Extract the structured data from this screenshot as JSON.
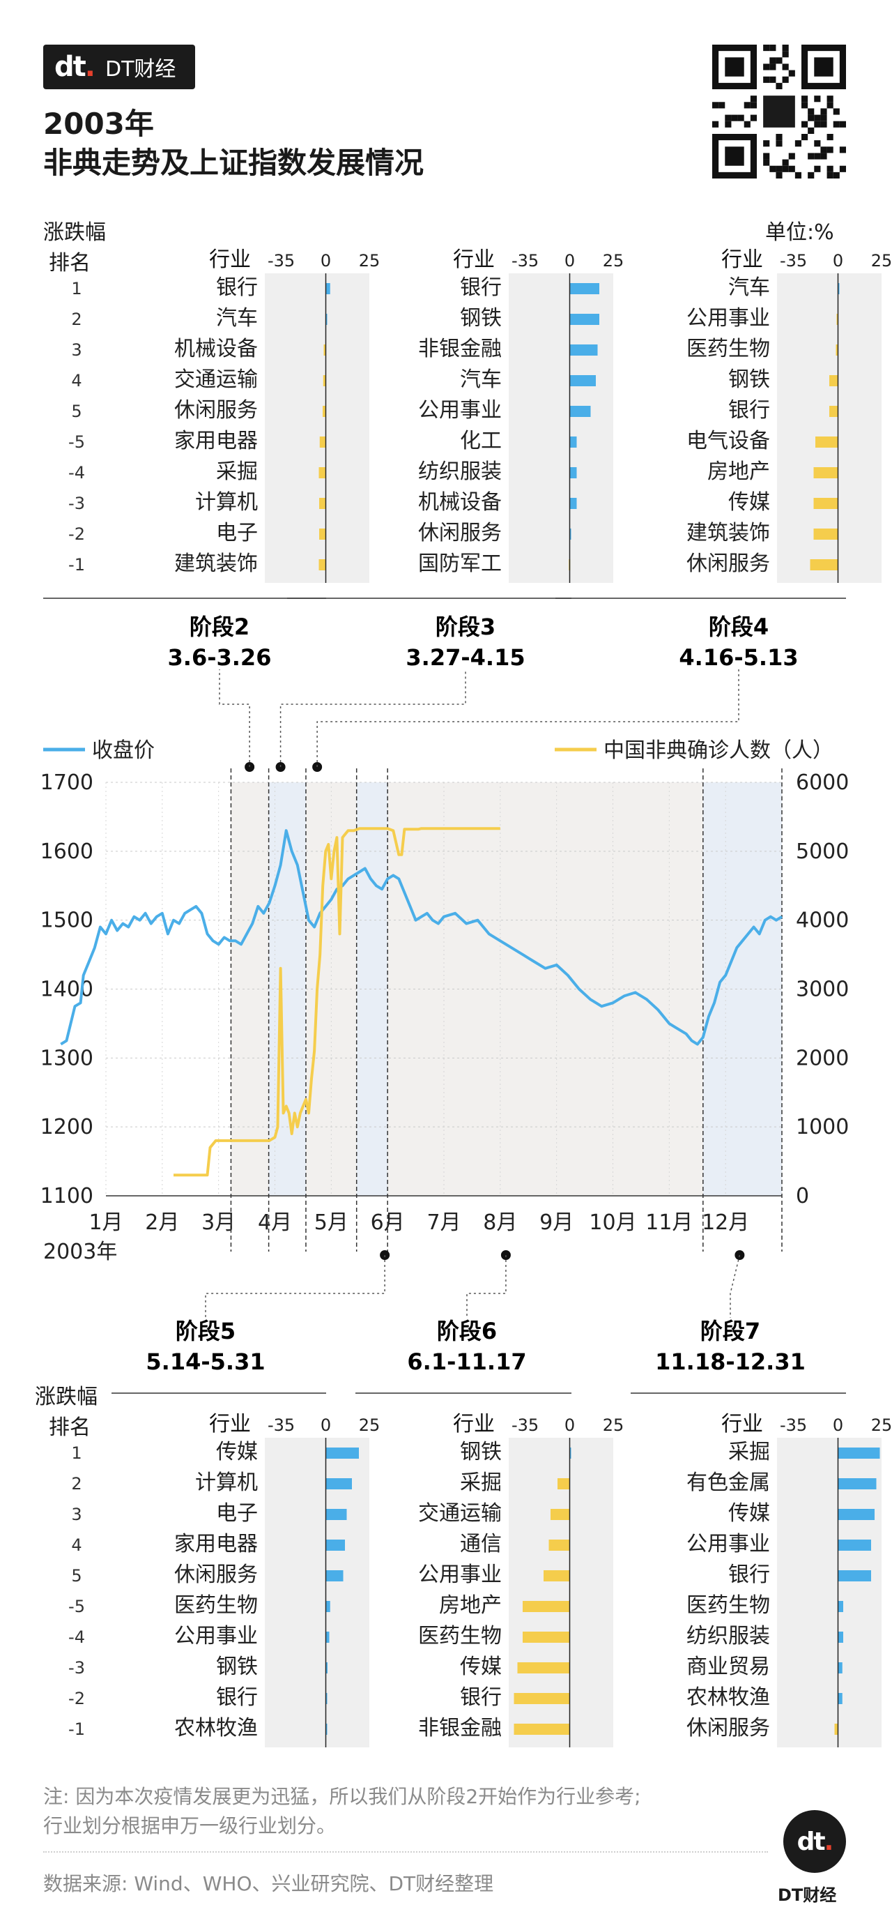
{
  "brand": {
    "logo_text": "DT财经"
  },
  "title_lines": [
    "2003年",
    "非典走势及上证指数发展情况"
  ],
  "labels": {
    "change_label": "涨跌幅",
    "rank_label": "排名",
    "industry_label": "行业",
    "unit_label": "单位:%"
  },
  "ranks": [
    "1",
    "2",
    "3",
    "4",
    "5",
    "-5",
    "-4",
    "-3",
    "-2",
    "-1"
  ],
  "colors": {
    "blue": "#4aaee8",
    "yellow": "#f5cd4c",
    "stage_gray": "#f2f0ee",
    "stage_blue": "#e8eef6",
    "panel_bg": "#efefef"
  },
  "stages": [
    {
      "name": "阶段2",
      "range": "3.6-3.26",
      "industries": [
        "银行",
        "汽车",
        "机械设备",
        "交通运输",
        "休闲服务",
        "家用电器",
        "采掘",
        "计算机",
        "电子",
        "建筑装饰"
      ],
      "values": [
        2.5,
        0.5,
        -1.2,
        -1.5,
        -1.8,
        -3.5,
        -4.0,
        -3.8,
        -3.8,
        -4.0
      ]
    },
    {
      "name": "阶段3",
      "range": "3.27-4.15",
      "industries": [
        "银行",
        "钢铁",
        "非银金融",
        "汽车",
        "公用事业",
        "化工",
        "纺织服装",
        "机械设备",
        "休闲服务",
        "国防军工"
      ],
      "values": [
        17,
        17,
        16,
        15,
        12,
        4,
        4,
        4,
        0.5,
        -0.5
      ]
    },
    {
      "name": "阶段4",
      "range": "4.16-5.13",
      "industries": [
        "汽车",
        "公用事业",
        "医药生物",
        "钢铁",
        "银行",
        "电气设备",
        "房地产",
        "传媒",
        "建筑装饰",
        "休闲服务"
      ],
      "values": [
        0.5,
        -0.8,
        -1.2,
        -5,
        -5,
        -13,
        -14,
        -14,
        -14,
        -16
      ]
    },
    {
      "name": "阶段5",
      "range": "5.14-5.31",
      "industries": [
        "传媒",
        "计算机",
        "电子",
        "家用电器",
        "休闲服务",
        "医药生物",
        "公用事业",
        "钢铁",
        "银行",
        "农林牧渔"
      ],
      "values": [
        19,
        15,
        12,
        11,
        10,
        2.5,
        2,
        1,
        0.5,
        0.3
      ]
    },
    {
      "name": "阶段6",
      "range": "6.1-11.17",
      "industries": [
        "钢铁",
        "采掘",
        "交通运输",
        "通信",
        "公用事业",
        "房地产",
        "医药生物",
        "传媒",
        "银行",
        "非银金融"
      ],
      "values": [
        0,
        -7,
        -11,
        -12,
        -15,
        -27,
        -27,
        -30,
        -32,
        -32
      ]
    },
    {
      "name": "阶段7",
      "range": "11.18-12.31",
      "industries": [
        "采掘",
        "有色金属",
        "传媒",
        "公用事业",
        "银行",
        "医药生物",
        "纺织服装",
        "商业贸易",
        "农林牧渔",
        "休闲服务"
      ],
      "values": [
        24,
        22,
        21,
        19,
        19,
        3,
        3,
        2.5,
        2.5,
        -2
      ]
    }
  ],
  "chart_data": {
    "type": "line",
    "title": "2003年 非典走势及上证指数发展情况",
    "xlabel": "2003年",
    "x_ticks": [
      "1月",
      "2月",
      "3月",
      "4月",
      "5月",
      "6月",
      "7月",
      "8月",
      "9月",
      "10月",
      "11月",
      "12月"
    ],
    "y_left": {
      "label": "收盘价",
      "ticks": [
        1100,
        1200,
        1300,
        1400,
        1500,
        1600,
        1700
      ],
      "range": [
        1100,
        1700
      ]
    },
    "y_right": {
      "label": "中国非典确诊人数（人）",
      "ticks": [
        0,
        1000,
        2000,
        3000,
        4000,
        5000,
        6000
      ],
      "range": [
        0,
        6000
      ]
    },
    "grid": true,
    "legend": "top",
    "series": [
      {
        "name": "收盘价",
        "axis": "left",
        "color": "#4aaee8",
        "x": [
          0.2,
          0.3,
          0.45,
          0.55,
          0.6,
          0.7,
          0.8,
          0.9,
          1.0,
          1.1,
          1.2,
          1.3,
          1.4,
          1.5,
          1.6,
          1.7,
          1.8,
          1.9,
          2.0,
          2.1,
          2.2,
          2.3,
          2.4,
          2.5,
          2.6,
          2.7,
          2.8,
          2.9,
          3.0,
          3.1,
          3.2,
          3.3,
          3.4,
          3.5,
          3.6,
          3.7,
          3.8,
          3.9,
          4.0,
          4.1,
          4.2,
          4.3,
          4.4,
          4.5,
          4.6,
          4.7,
          4.8,
          4.9,
          5.0,
          5.1,
          5.2,
          5.3,
          5.4,
          5.5,
          5.6,
          5.7,
          5.8,
          5.9,
          6.0,
          6.1,
          6.2,
          6.3,
          6.4,
          6.5,
          6.6,
          6.7,
          6.8,
          6.9,
          7.0,
          7.2,
          7.4,
          7.6,
          7.8,
          8.0,
          8.2,
          8.4,
          8.6,
          8.8,
          9.0,
          9.2,
          9.4,
          9.6,
          9.8,
          10.0,
          10.2,
          10.4,
          10.6,
          10.8,
          11.0,
          11.1,
          11.2,
          11.3,
          11.4,
          11.5,
          11.6,
          11.7,
          11.8,
          11.9,
          12.0,
          12.1,
          12.2,
          12.3,
          12.4,
          12.5,
          12.6,
          12.7,
          12.8,
          12.9,
          13.0
        ],
        "y": [
          1320,
          1325,
          1375,
          1380,
          1420,
          1440,
          1460,
          1490,
          1480,
          1500,
          1485,
          1495,
          1490,
          1505,
          1500,
          1510,
          1495,
          1505,
          1510,
          1480,
          1500,
          1495,
          1510,
          1515,
          1520,
          1510,
          1480,
          1470,
          1465,
          1475,
          1470,
          1470,
          1465,
          1480,
          1495,
          1520,
          1510,
          1525,
          1550,
          1580,
          1630,
          1600,
          1580,
          1540,
          1500,
          1490,
          1510,
          1520,
          1530,
          1545,
          1550,
          1560,
          1565,
          1570,
          1575,
          1560,
          1550,
          1545,
          1560,
          1565,
          1560,
          1540,
          1520,
          1500,
          1505,
          1510,
          1500,
          1495,
          1505,
          1510,
          1495,
          1500,
          1480,
          1470,
          1460,
          1450,
          1440,
          1430,
          1435,
          1420,
          1400,
          1385,
          1375,
          1380,
          1390,
          1395,
          1385,
          1370,
          1350,
          1345,
          1340,
          1335,
          1325,
          1320,
          1330,
          1360,
          1380,
          1410,
          1420,
          1440,
          1460,
          1470,
          1480,
          1490,
          1480,
          1500,
          1505,
          1500,
          1505
        ]
      },
      {
        "name": "中国非典确诊人数（人）",
        "axis": "right",
        "color": "#f5cd4c",
        "x": [
          2.2,
          2.8,
          2.85,
          2.95,
          3.0,
          3.4,
          3.6,
          3.9,
          4.0,
          4.05,
          4.1,
          4.15,
          4.2,
          4.25,
          4.3,
          4.35,
          4.4,
          4.45,
          4.5,
          4.55,
          4.6,
          4.65,
          4.7,
          4.75,
          4.8,
          4.85,
          4.9,
          4.95,
          5.0,
          5.05,
          5.1,
          5.15,
          5.2,
          5.25,
          5.3,
          5.4,
          5.5,
          5.6,
          5.7,
          5.8,
          5.9,
          6.0,
          6.1,
          6.2,
          6.25,
          6.3,
          6.45,
          6.5,
          6.55,
          6.6,
          6.7,
          7.0,
          7.5,
          8.0
        ],
        "y": [
          300,
          300,
          700,
          800,
          800,
          800,
          800,
          800,
          850,
          1000,
          3300,
          1200,
          1300,
          1200,
          900,
          1200,
          1000,
          1200,
          1300,
          1400,
          1200,
          1700,
          2100,
          3000,
          3500,
          4500,
          5000,
          5100,
          4600,
          5000,
          5200,
          3800,
          5200,
          5250,
          5300,
          5300,
          5330,
          5330,
          5330,
          5330,
          5330,
          5330,
          5300,
          4950,
          4950,
          5320,
          5320,
          5320,
          5320,
          5330,
          5330,
          5330,
          5330,
          5330
        ]
      }
    ],
    "stage_markers": [
      "阶段2",
      "阶段3",
      "阶段4",
      "阶段5",
      "阶段6",
      "阶段7"
    ]
  }
}
